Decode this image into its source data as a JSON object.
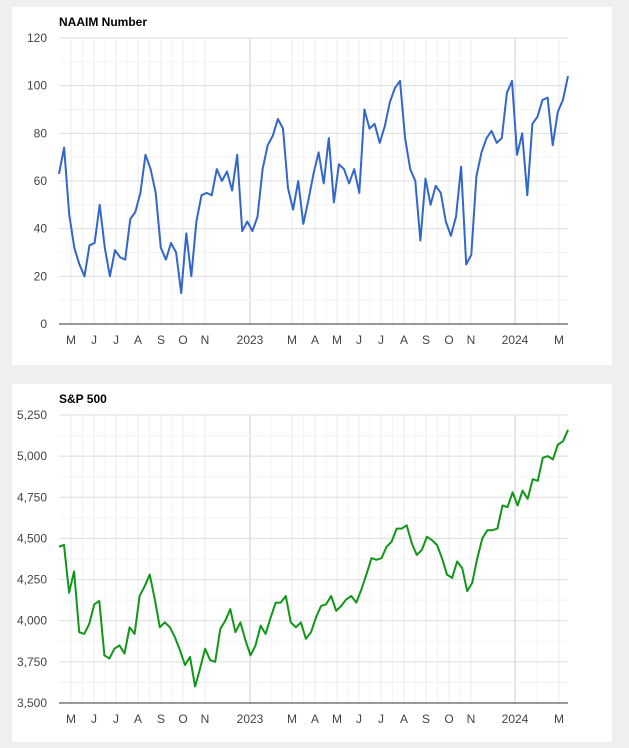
{
  "chart_data": [
    {
      "type": "line",
      "title": "NAAIM Number",
      "xlabel": "",
      "ylabel": "",
      "ylim": [
        0,
        120
      ],
      "yticks": [
        "0",
        "20",
        "40",
        "60",
        "80",
        "100",
        "120"
      ],
      "xticks": [
        "M",
        "J",
        "J",
        "A",
        "S",
        "O",
        "N",
        "2023",
        "M",
        "A",
        "M",
        "J",
        "J",
        "A",
        "S",
        "O",
        "N",
        "2024",
        "M"
      ],
      "color": "#3366cc",
      "series": [
        {
          "name": "NAAIM Number",
          "values": [
            63,
            74,
            46,
            32,
            25,
            20,
            33,
            34,
            50,
            32,
            20,
            31,
            28,
            27,
            44,
            47,
            55,
            71,
            65,
            55,
            32,
            27,
            34,
            30,
            13,
            38,
            20,
            43,
            54,
            55,
            54,
            65,
            60,
            64,
            56,
            71,
            39,
            43,
            39,
            45,
            65,
            75,
            79,
            86,
            82,
            57,
            48,
            60,
            42,
            52,
            63,
            72,
            59,
            78,
            51,
            67,
            65,
            59,
            65,
            55,
            90,
            82,
            84,
            76,
            83,
            93,
            99,
            102,
            78,
            65,
            60,
            35,
            61,
            50,
            58,
            55,
            43,
            37,
            45,
            66,
            25,
            29,
            62,
            72,
            78,
            81,
            76,
            78,
            97,
            102,
            71,
            80,
            54,
            84,
            87,
            94,
            95,
            75,
            89,
            94,
            104
          ]
        }
      ]
    },
    {
      "type": "line",
      "title": "S&P 500",
      "xlabel": "",
      "ylabel": "",
      "ylim": [
        3500,
        5250
      ],
      "yticks": [
        "3,500",
        "3,750",
        "4,000",
        "4,250",
        "4,500",
        "4,750",
        "5,000",
        "5,250"
      ],
      "xticks": [
        "M",
        "J",
        "J",
        "A",
        "S",
        "O",
        "N",
        "2023",
        "M",
        "A",
        "M",
        "J",
        "J",
        "A",
        "S",
        "O",
        "N",
        "2024",
        "M"
      ],
      "color": "#109618",
      "series": [
        {
          "name": "S&P 500",
          "values": [
            4450,
            4460,
            4170,
            4300,
            3930,
            3920,
            3980,
            4100,
            4120,
            3790,
            3770,
            3830,
            3850,
            3800,
            3960,
            3920,
            4150,
            4210,
            4280,
            4130,
            3960,
            3990,
            3960,
            3900,
            3820,
            3730,
            3780,
            3600,
            3710,
            3830,
            3760,
            3750,
            3950,
            4000,
            4070,
            3930,
            3990,
            3880,
            3790,
            3850,
            3970,
            3920,
            4020,
            4110,
            4110,
            4150,
            3990,
            3960,
            3990,
            3890,
            3930,
            4020,
            4090,
            4100,
            4150,
            4060,
            4090,
            4130,
            4150,
            4110,
            4190,
            4280,
            4380,
            4370,
            4380,
            4450,
            4480,
            4560,
            4560,
            4580,
            4470,
            4400,
            4430,
            4510,
            4490,
            4460,
            4380,
            4280,
            4260,
            4360,
            4320,
            4180,
            4230,
            4380,
            4500,
            4550,
            4550,
            4560,
            4700,
            4690,
            4780,
            4700,
            4790,
            4740,
            4860,
            4850,
            4990,
            5000,
            4980,
            5070,
            5090,
            5160
          ]
        }
      ]
    }
  ]
}
